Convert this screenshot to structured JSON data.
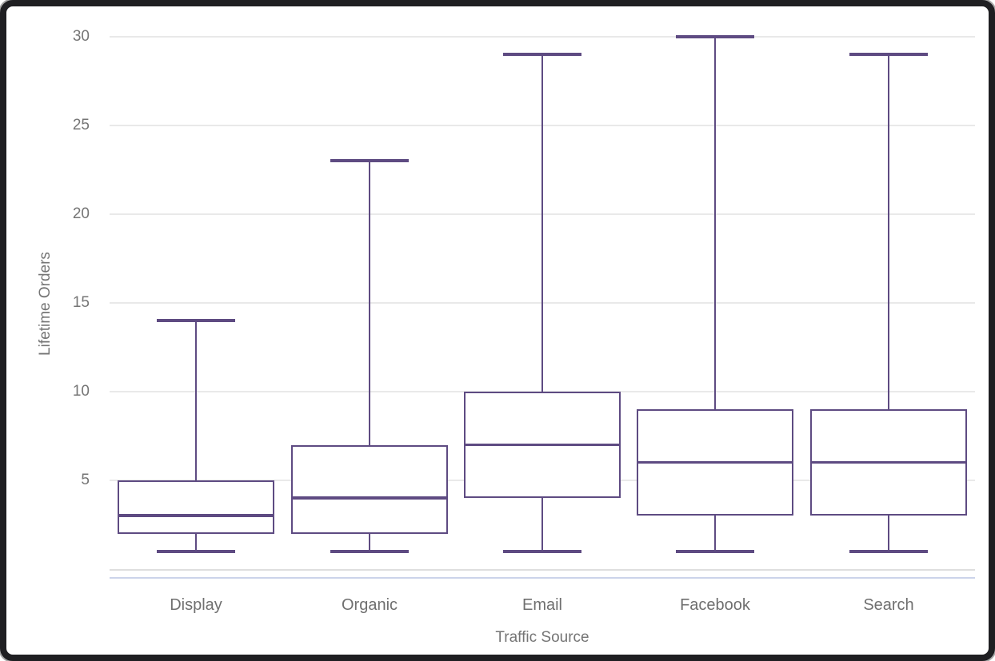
{
  "chart_data": {
    "type": "box",
    "title": "",
    "xlabel": "Traffic Source",
    "ylabel": "Lifetime Orders",
    "categories": [
      "Display",
      "Organic",
      "Email",
      "Facebook",
      "Search"
    ],
    "series": [
      {
        "name": "Display",
        "min": 1,
        "q1": 2,
        "median": 3,
        "q3": 5,
        "max": 14
      },
      {
        "name": "Organic",
        "min": 1,
        "q1": 2,
        "median": 4,
        "q3": 7,
        "max": 23
      },
      {
        "name": "Email",
        "min": 1,
        "q1": 4,
        "median": 7,
        "q3": 10,
        "max": 29
      },
      {
        "name": "Facebook",
        "min": 1,
        "q1": 3,
        "median": 6,
        "q3": 9,
        "max": 30
      },
      {
        "name": "Search",
        "min": 1,
        "q1": 3,
        "median": 6,
        "q3": 9,
        "max": 29
      }
    ],
    "ylim": [
      0,
      31
    ],
    "yticks": [
      5,
      10,
      15,
      20,
      25,
      30
    ],
    "grid": true,
    "legend": "none",
    "colors": {
      "box_stroke": "#5e4b82",
      "gridline": "#e9e9e9",
      "axis_line": "#dedede",
      "baseline_accent": "#ccd4ea",
      "text": "#757575"
    }
  }
}
